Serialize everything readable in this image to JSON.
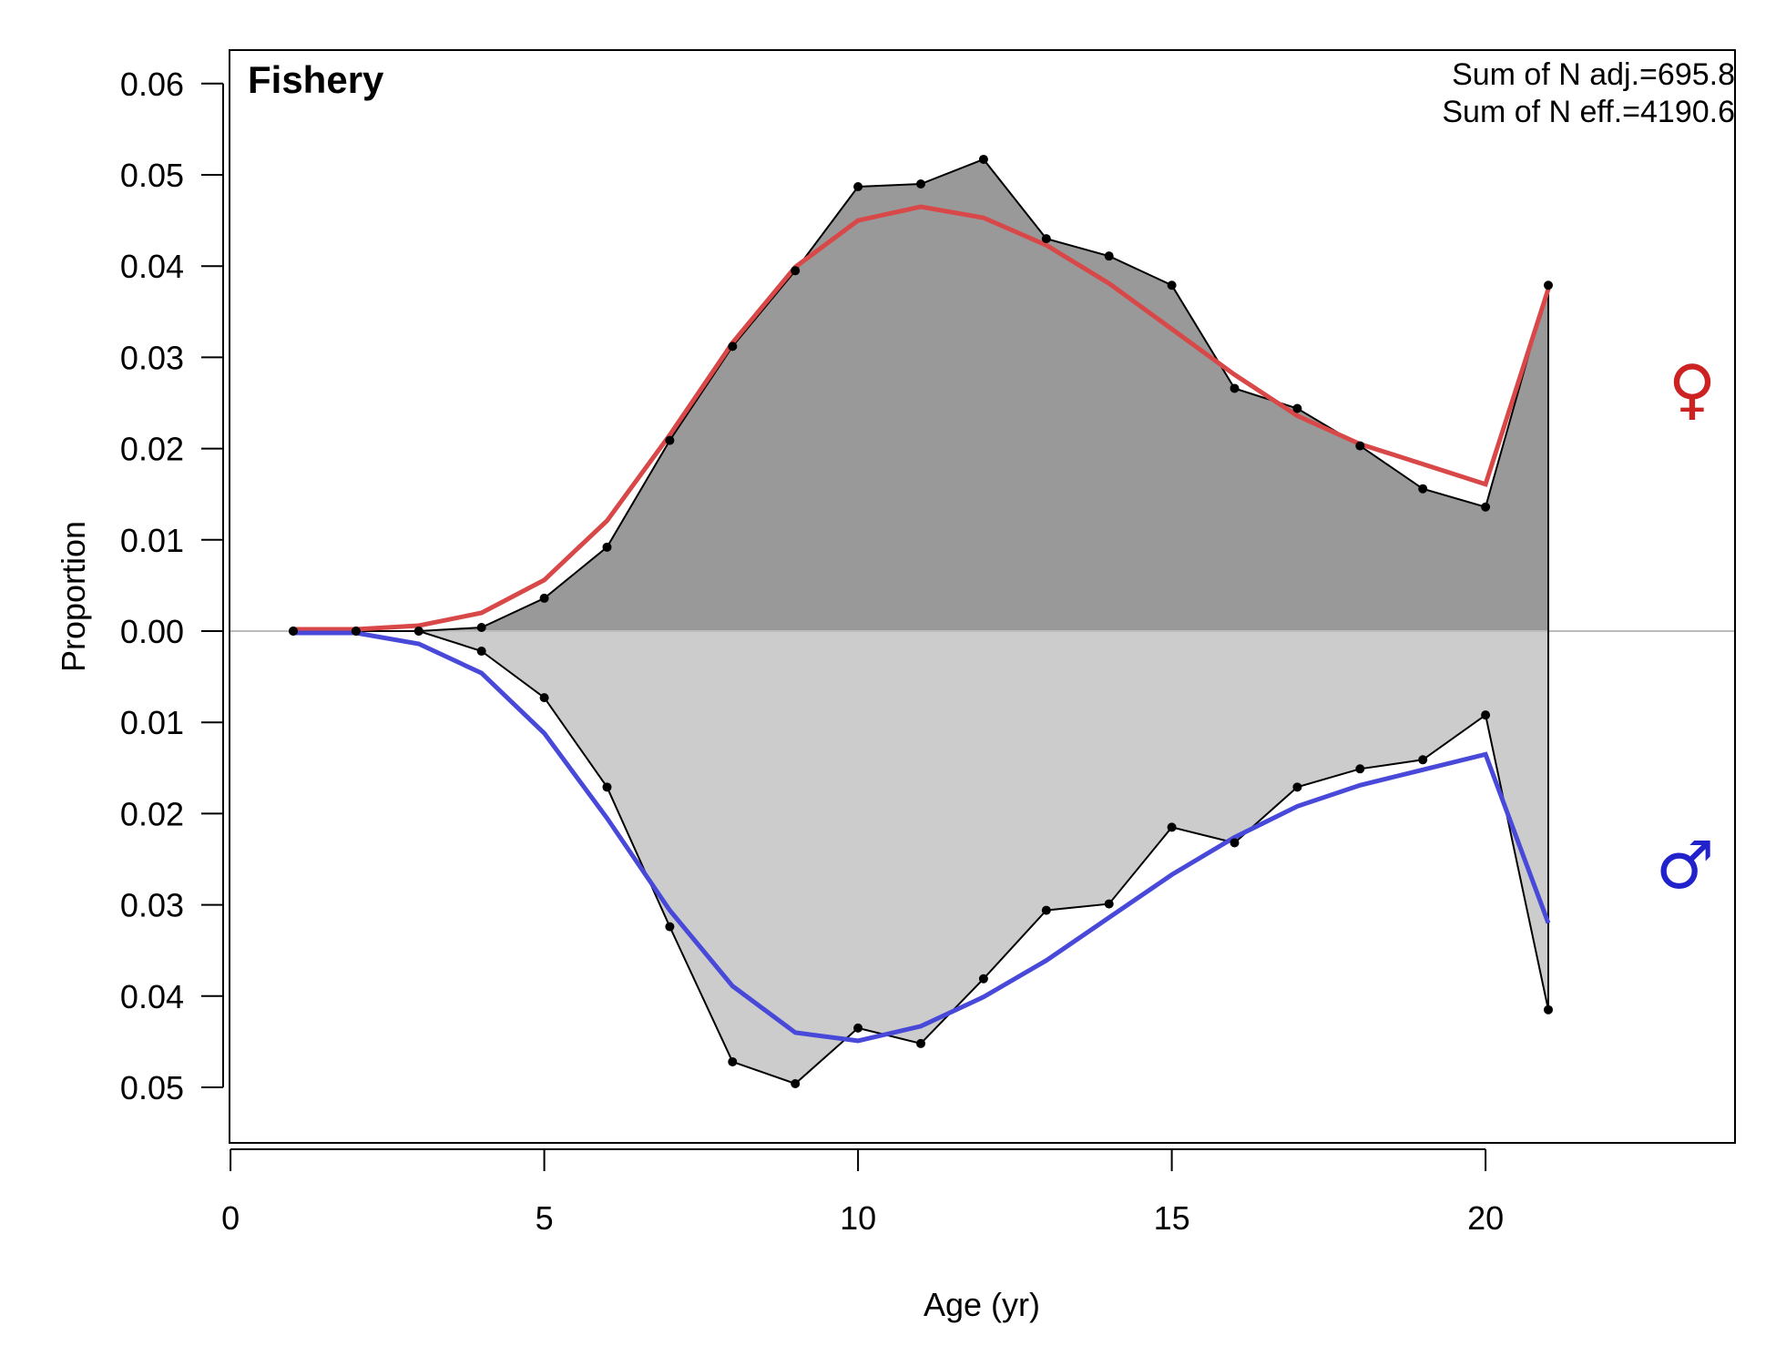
{
  "chart_data": {
    "type": "area",
    "title": "Fishery",
    "xlabel": "Age (yr)",
    "ylabel": "Proportion",
    "xlim": [
      -1,
      23.5
    ],
    "ylim": [
      -0.056,
      0.0635
    ],
    "x_ticks": [
      0,
      5,
      10,
      15,
      20
    ],
    "x_tick_labels": [
      "0",
      "5",
      "10",
      "15",
      "20"
    ],
    "y_ticks": [
      0.06,
      0.05,
      0.04,
      0.03,
      0.02,
      0.01,
      0.0,
      -0.01,
      -0.02,
      -0.03,
      -0.04,
      -0.05
    ],
    "y_tick_labels": [
      "0.06",
      "0.05",
      "0.04",
      "0.03",
      "0.02",
      "0.01",
      "0.00",
      "0.01",
      "0.02",
      "0.03",
      "0.04",
      "0.05"
    ],
    "annotations": [
      "Sum of N adj.=695.8",
      "Sum of N eff.=4190.6"
    ],
    "female_symbol": "♀",
    "male_symbol": "♂",
    "x": [
      1,
      2,
      3,
      4,
      5,
      6,
      7,
      8,
      9,
      10,
      11,
      12,
      13,
      14,
      15,
      16,
      17,
      18,
      19,
      20,
      21
    ],
    "series": [
      {
        "kind": "observed-female",
        "values": [
          0.0,
          0.0,
          0.0,
          0.0004,
          0.0036,
          0.0092,
          0.0209,
          0.0312,
          0.0395,
          0.0487,
          0.049,
          0.0517,
          0.043,
          0.0411,
          0.0379,
          0.0266,
          0.0244,
          0.0203,
          0.0156,
          0.0136,
          0.0379
        ]
      },
      {
        "kind": "expected-female",
        "values": [
          0.0002,
          0.0002,
          0.0006,
          0.002,
          0.0056,
          0.0121,
          0.0215,
          0.0316,
          0.0399,
          0.045,
          0.0465,
          0.0453,
          0.0423,
          0.0381,
          0.0331,
          0.0281,
          0.0236,
          0.0205,
          0.0183,
          0.0161,
          0.0375
        ]
      },
      {
        "kind": "observed-male",
        "values": [
          0.0,
          0.0,
          0.0,
          -0.0022,
          -0.0073,
          -0.0171,
          -0.0324,
          -0.0472,
          -0.0496,
          -0.0435,
          -0.0452,
          -0.0381,
          -0.0306,
          -0.0299,
          -0.0215,
          -0.0232,
          -0.0171,
          -0.0151,
          -0.0141,
          -0.0092,
          -0.0415
        ]
      },
      {
        "kind": "expected-male",
        "values": [
          -0.0002,
          -0.0002,
          -0.0014,
          -0.0046,
          -0.0112,
          -0.0205,
          -0.0306,
          -0.0389,
          -0.044,
          -0.0449,
          -0.0433,
          -0.0401,
          -0.0361,
          -0.0314,
          -0.0267,
          -0.0226,
          -0.0192,
          -0.0169,
          -0.0152,
          -0.0135,
          -0.032
        ]
      }
    ],
    "colors": {
      "female_fill": "#999999",
      "male_fill": "#cccccc",
      "observed_line": "#000000",
      "expected_female": "#d94848",
      "expected_male": "#4848d9",
      "zero_line": "#bbbbbb",
      "female_symbol": "#cc2222",
      "male_symbol": "#2222cc"
    },
    "grid": false,
    "legend": "none"
  }
}
